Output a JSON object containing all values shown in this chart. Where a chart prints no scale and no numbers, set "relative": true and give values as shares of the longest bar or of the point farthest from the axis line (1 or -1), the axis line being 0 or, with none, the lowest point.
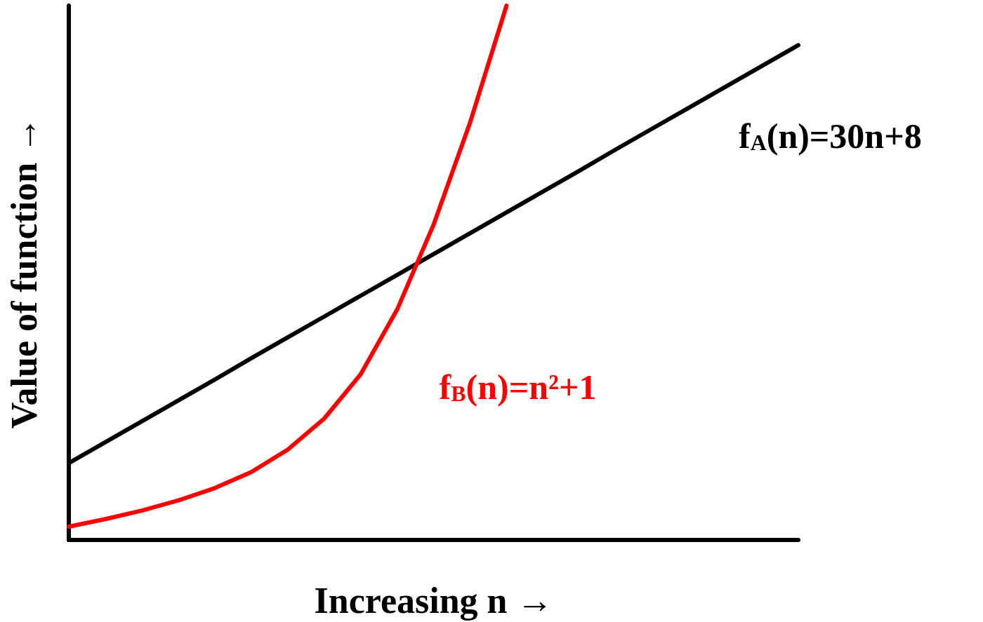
{
  "chart_data": {
    "type": "line",
    "relative": true,
    "xlabel": "Increasing n →",
    "ylabel": "Value of function →",
    "categories": [
      null,
      null,
      null,
      null,
      null,
      null,
      null,
      null,
      null,
      null,
      null,
      null,
      null,
      null,
      null,
      null,
      null,
      null,
      null,
      null,
      null
    ],
    "series": [
      {
        "name": "f$_{A}$(n)=30n+8",
        "color": "#000000",
        "values": [
          0.144,
          0.183,
          0.222,
          0.261,
          0.3,
          0.34,
          0.379,
          0.418,
          0.457,
          0.496,
          0.535,
          0.574,
          0.613,
          0.652,
          0.691,
          0.731,
          0.77,
          0.809,
          0.848,
          0.887,
          0.926
        ]
      },
      {
        "name": "f$_{B}$(n)=n²+1",
        "color": "#ff0000",
        "values": [
          0.025,
          0.039,
          0.055,
          0.074,
          0.097,
          0.127,
          0.169,
          0.227,
          0.31,
          0.431,
          0.59,
          0.781,
          1.0,
          null,
          null,
          null,
          null,
          null,
          null,
          null,
          null
        ]
      }
    ],
    "grid": false,
    "legend": false,
    "marker": "none",
    "line_style": "solid"
  }
}
